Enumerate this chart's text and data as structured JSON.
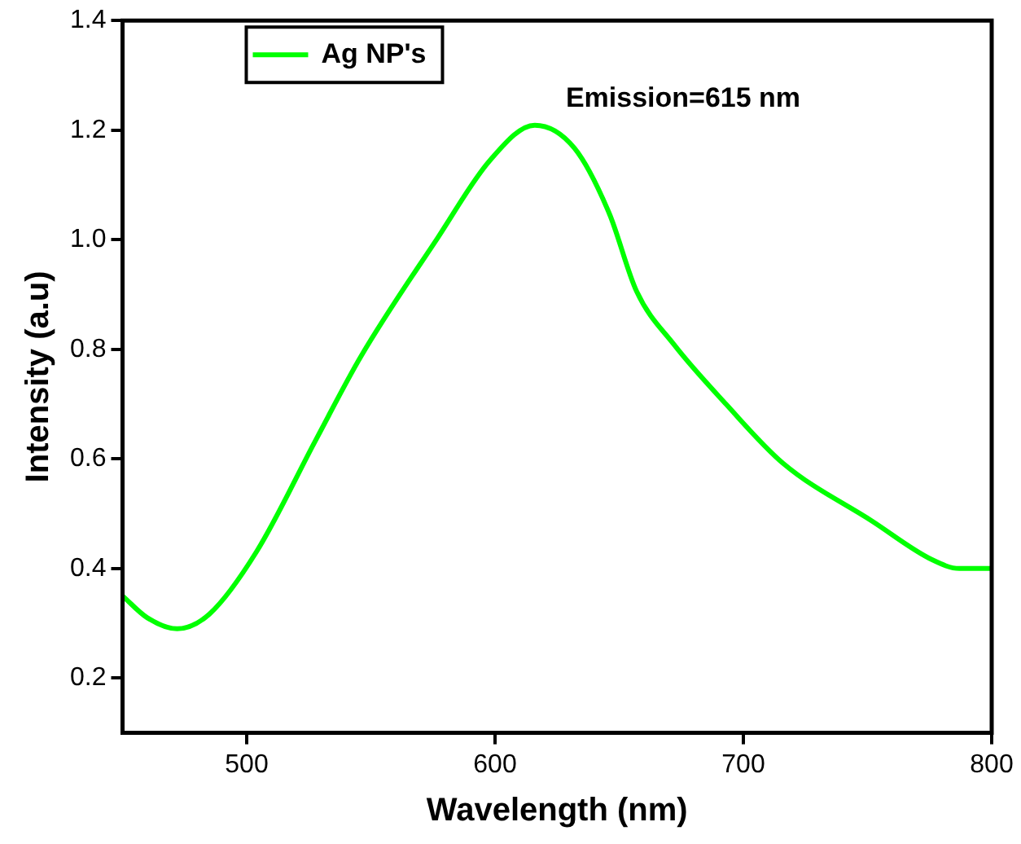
{
  "chart_data": {
    "type": "line",
    "xlabel": "Wavelength (nm)",
    "ylabel": "Intensity (a.u)",
    "annotations": [
      "Emission=615 nm"
    ],
    "xlim": [
      450,
      800
    ],
    "ylim": [
      0.1,
      1.4
    ],
    "xticks": [
      500,
      600,
      700,
      800
    ],
    "yticks": [
      0.2,
      0.4,
      0.6,
      0.8,
      {
        "value": 1,
        "label": "1.0"
      },
      1.2,
      1.4
    ],
    "grid": false,
    "legend": "top left",
    "marker": "none",
    "line_style": "solid",
    "series": [
      {
        "name": "Ag NP's",
        "color": "#00ff00",
        "x": [
          450,
          460,
          472,
          485,
          504,
          528,
          546,
          577,
          598,
          616,
          632,
          646,
          657,
          672,
          693,
          716,
          752,
          776,
          787,
          800
        ],
        "values": [
          0.35,
          0.31,
          0.29,
          0.317,
          0.431,
          0.636,
          0.787,
          1.004,
          1.145,
          1.209,
          1.167,
          1.048,
          0.906,
          0.809,
          0.7,
          0.592,
          0.486,
          0.416,
          0.4,
          0.4
        ]
      }
    ]
  }
}
